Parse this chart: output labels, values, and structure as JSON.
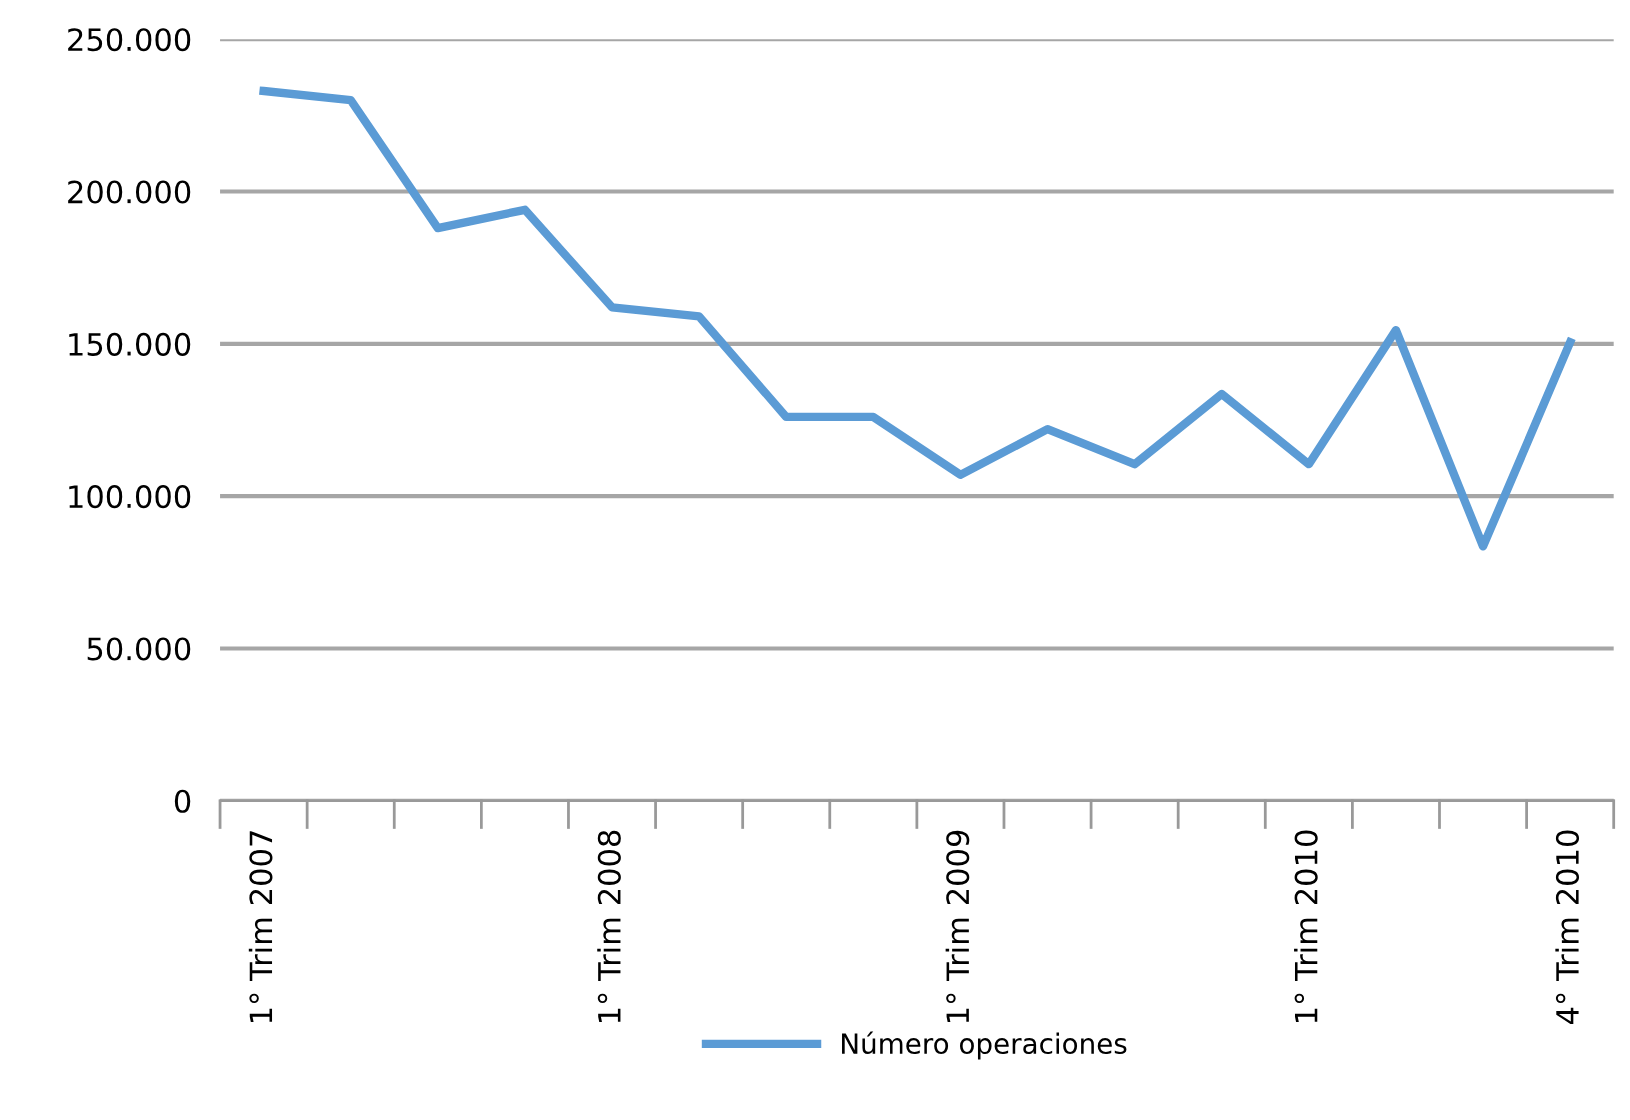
{
  "chart_data": {
    "type": "line",
    "categories": [
      "1° Trim 2007",
      null,
      null,
      null,
      "1° Trim 2008",
      null,
      null,
      null,
      "1° Trim 2009",
      null,
      null,
      null,
      "1° Trim 2010",
      null,
      null,
      "4° Trim 2010"
    ],
    "series": [
      {
        "name": "Número operaciones",
        "color": "#5b9bd5",
        "values": [
          233000,
          230000,
          188000,
          194000,
          162000,
          159000,
          126000,
          126000,
          107000,
          122000,
          110500,
          133500,
          110500,
          154500,
          83500,
          150500
        ]
      }
    ],
    "ylim": [
      0,
      250000
    ],
    "yticks": [
      {
        "value": 0,
        "label": "0"
      },
      {
        "value": 50000,
        "label": "50.000"
      },
      {
        "value": 100000,
        "label": "100.000"
      },
      {
        "value": 150000,
        "label": "150.000"
      },
      {
        "value": 200000,
        "label": "200.000"
      },
      {
        "value": 250000,
        "label": "250.000"
      }
    ],
    "grid": "y",
    "legend": "bottom",
    "marker": "none",
    "line_style": "solid"
  }
}
